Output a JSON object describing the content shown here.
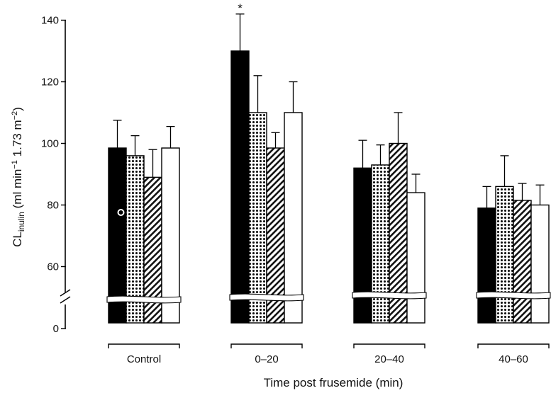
{
  "chart_data": {
    "type": "bar",
    "xlabel": "Time post frusemide (min)",
    "ylabel": {
      "main": "CL",
      "sub": "inulin",
      "unit_a": " (ml min",
      "unit_a_exp": "−1",
      "unit_b": " 1.73 m",
      "unit_b_exp": "−2",
      "unit_close": ")"
    },
    "categories": [
      "Control",
      "0–20",
      "20–40",
      "40–60"
    ],
    "ylim": [
      0,
      140
    ],
    "axis_break": true,
    "yticks": [
      0,
      60,
      80,
      100,
      120,
      140
    ],
    "series": [
      {
        "values": [
          98.5,
          130,
          92,
          79
        ],
        "errors": [
          9,
          12,
          9,
          7
        ],
        "fill": "solid-black"
      },
      {
        "values": [
          96,
          110,
          93,
          86
        ],
        "errors": [
          6.5,
          12,
          6.5,
          10
        ],
        "fill": "dots"
      },
      {
        "values": [
          89,
          98.5,
          100,
          81.5
        ],
        "errors": [
          9,
          5,
          10,
          5.5
        ],
        "fill": "diagonal-hatch"
      },
      {
        "values": [
          98.5,
          110,
          84,
          80
        ],
        "errors": [
          7,
          10,
          6,
          6.5
        ],
        "fill": "white"
      }
    ],
    "annotations": [
      {
        "text": "*",
        "category": "0–20",
        "series": 0
      },
      {
        "text": "o",
        "category": "Control",
        "series": 0
      }
    ],
    "legend": "none",
    "grid": false
  }
}
